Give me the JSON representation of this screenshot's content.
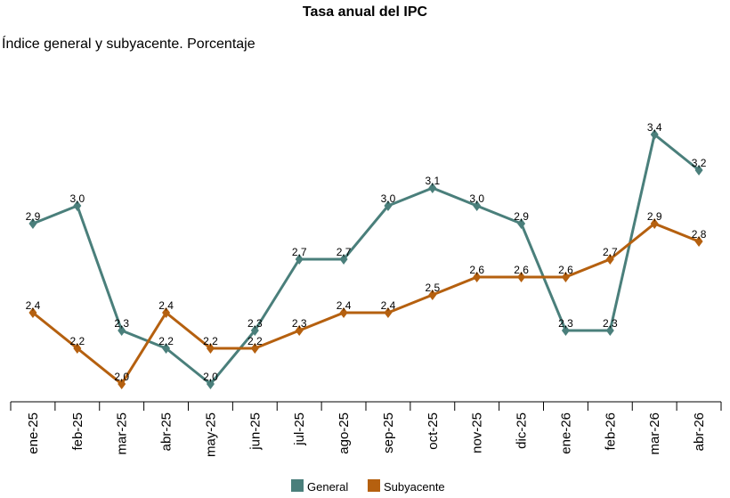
{
  "chart_data": {
    "type": "line",
    "title": "Tasa anual del IPC",
    "subtitle": "Índice general y subyacente. Porcentaje",
    "categories": [
      "ene-25",
      "feb-25",
      "mar-25",
      "abr-25",
      "may-25",
      "jun-25",
      "jul-25",
      "ago-25",
      "sep-25",
      "oct-25",
      "nov-25",
      "dic-25",
      "ene-26",
      "feb-26",
      "mar-26",
      "abr-26"
    ],
    "series": [
      {
        "name": "General",
        "color": "#4a7f7b",
        "values": [
          2.9,
          3.0,
          2.3,
          2.2,
          2.0,
          2.3,
          2.7,
          2.7,
          3.0,
          3.1,
          3.0,
          2.9,
          2.3,
          2.3,
          3.4,
          3.2
        ],
        "labels": [
          "2,9",
          "3,0",
          "2,3",
          "2,2",
          "2,0",
          "2,3",
          "2,7",
          "2,7",
          "3,0",
          "3,1",
          "3,0",
          "2,9",
          "2,3",
          "2,3",
          "3,4",
          "3,2"
        ]
      },
      {
        "name": "Subyacente",
        "color": "#b5600f",
        "values": [
          2.4,
          2.2,
          2.0,
          2.4,
          2.2,
          2.2,
          2.3,
          2.4,
          2.4,
          2.5,
          2.6,
          2.6,
          2.6,
          2.7,
          2.9,
          2.8
        ],
        "labels": [
          "2,4",
          "2,2",
          "2,0",
          "2,4",
          "2,2",
          "2,2",
          "2,3",
          "2,4",
          "2,4",
          "2,5",
          "2,6",
          "2,6",
          "2,6",
          "2,7",
          "2,9",
          "2,8"
        ]
      }
    ],
    "marker": "diamond",
    "grid": false,
    "legend_position": "bottom"
  }
}
